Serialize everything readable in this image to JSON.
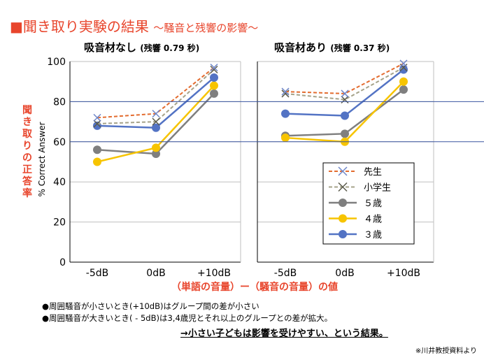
{
  "title": {
    "main": "■聞き取り実験の結果",
    "sub": "〜騒音と残響の影響〜"
  },
  "panels": [
    {
      "heading": "吸音材なし",
      "reverb": "(残響 0.79 秒)"
    },
    {
      "heading": "吸音材あり",
      "reverb": "(残響 0.37 秒)"
    }
  ],
  "y_axis_jp": "聞き取りの正答率",
  "y_axis_en": "% Correct Answer",
  "x_axis_title": "（単語の音量）ー（騒音の音量）の値",
  "notes": [
    "●周囲騒音が小さいとき(+10dB)はグループ間の差が小さい",
    "●周囲騒音が大きいとき( - 5dB)は3,4歳児とそれ以上のグループとの差が拡大。"
  ],
  "conclusion": "→小さい子どもは影響を受けやすい、という結果。",
  "source": "※川井教授資料より",
  "colors": {
    "title": "#e8452c",
    "teacher": "#e36c2f",
    "elementary": "#a6a38a",
    "age5": "#7f7f7f",
    "age4": "#f7c400",
    "age3": "#5373c4",
    "hline": "#3a55a0"
  },
  "chart_data": [
    {
      "type": "line",
      "title": "吸音材なし (残響 0.79 秒)",
      "categories": [
        "-5dB",
        "0dB",
        "+10dB"
      ],
      "ylim": [
        0,
        100
      ],
      "yticks": [
        0,
        20,
        40,
        60,
        80,
        100
      ],
      "ylabel": "% Correct Answer",
      "series": [
        {
          "name": "先生",
          "values": [
            72,
            74,
            97
          ]
        },
        {
          "name": "小学生",
          "values": [
            69,
            70,
            96
          ]
        },
        {
          "name": "５歳",
          "values": [
            56,
            54,
            84
          ]
        },
        {
          "name": "４歳",
          "values": [
            50,
            57,
            88
          ]
        },
        {
          "name": "３歳",
          "values": [
            68,
            67,
            92
          ]
        }
      ]
    },
    {
      "type": "line",
      "title": "吸音材あり (残響 0.37 秒)",
      "categories": [
        "-5dB",
        "0dB",
        "+10dB"
      ],
      "ylim": [
        0,
        100
      ],
      "yticks": [
        0,
        20,
        40,
        60,
        80,
        100
      ],
      "series": [
        {
          "name": "先生",
          "values": [
            85,
            84,
            99
          ]
        },
        {
          "name": "小学生",
          "values": [
            84,
            81,
            97
          ]
        },
        {
          "name": "５歳",
          "values": [
            63,
            64,
            86
          ]
        },
        {
          "name": "４歳",
          "values": [
            62,
            60,
            90
          ]
        },
        {
          "name": "３歳",
          "values": [
            74,
            73,
            96
          ]
        }
      ],
      "legend": [
        "先生",
        "小学生",
        "５歳",
        "４歳",
        "３歳"
      ],
      "legend_position": "bottom-right"
    }
  ]
}
